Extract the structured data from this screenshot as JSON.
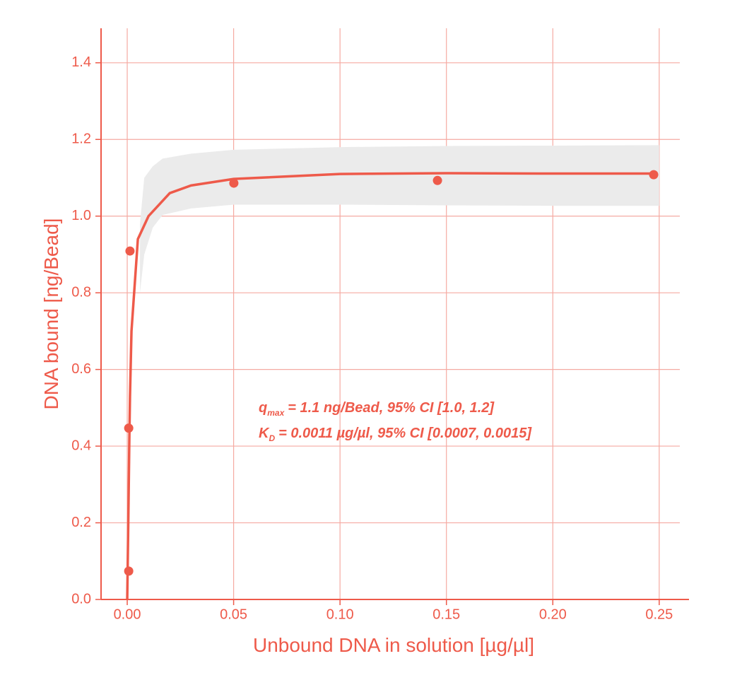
{
  "chart_data": {
    "type": "scatter",
    "xlabel": "Unbound DNA in solution [µg/µl]",
    "ylabel": "DNA bound [ng/Bead]",
    "xlim": [
      -0.0123,
      0.264
    ],
    "ylim": [
      0,
      1.49
    ],
    "xticks": [
      {
        "value": 0,
        "label": "0.00"
      },
      0.05,
      {
        "value": 0.1,
        "label": "0.10"
      },
      0.15,
      {
        "value": 0.2,
        "label": "0.20"
      },
      0.25
    ],
    "yticks": [
      {
        "value": 0,
        "label": "0.0"
      },
      0.2,
      0.4,
      0.6,
      0.8,
      {
        "value": 1,
        "label": "1.0"
      },
      1.2,
      1.4
    ],
    "grid": true,
    "color": "#ee5a4a",
    "grid_color": "#f5aaa2",
    "points": {
      "x": [
        0.0007,
        0.0007,
        0.0013,
        0.0501,
        0.1458,
        0.2474
      ],
      "y": [
        0.074,
        0.447,
        0.909,
        1.086,
        1.093,
        1.108
      ]
    },
    "fit": {
      "x": [
        0,
        0.0005,
        0.001,
        0.0013,
        0.002,
        0.005,
        0.01,
        0.02,
        0.03,
        0.05,
        0.1,
        0.15,
        0.2,
        0.248
      ],
      "y": [
        0,
        0.2,
        0.42,
        0.53,
        0.7,
        0.94,
        1.0,
        1.06,
        1.08,
        1.097,
        1.11,
        1.112,
        1.111,
        1.111
      ]
    },
    "band": {
      "color": "#ebebeb",
      "x": [
        0.006,
        0.008,
        0.012,
        0.0166,
        0.03,
        0.05,
        0.1,
        0.15,
        0.2,
        0.25
      ],
      "upper": [
        0.98,
        1.1,
        1.13,
        1.15,
        1.163,
        1.173,
        1.18,
        1.183,
        1.184,
        1.185
      ],
      "lower": [
        0.8,
        0.9,
        0.97,
        1.003,
        1.02,
        1.03,
        1.03,
        1.028,
        1.027,
        1.027
      ]
    },
    "annotations": [
      {
        "symbol": "q",
        "subscript": "max",
        "text": "= 1.1 ng/Bead, 95% CI [1.0, 1.2]"
      },
      {
        "symbol": "K",
        "subscript": "D",
        "text": "= 0.0011 µg/µl, 95% CI [0.0007, 0.0015]"
      }
    ]
  }
}
